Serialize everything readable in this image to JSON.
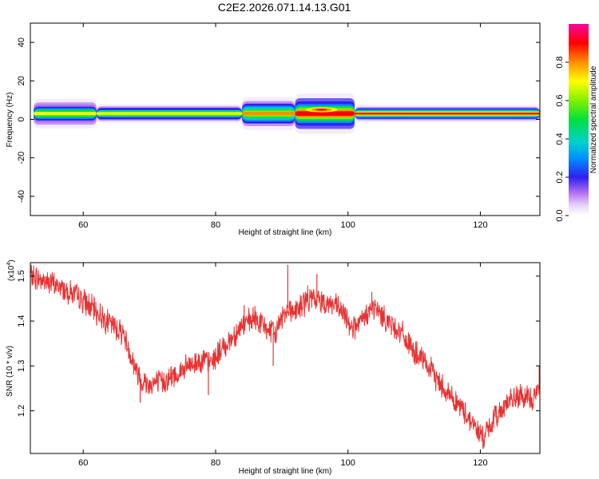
{
  "title": "C2E2.2026.071.14.13.G01",
  "colors": {
    "snr_line": "#e83232",
    "frame": "#000000",
    "background": "#ffffff"
  },
  "chart_data": [
    {
      "type": "heatmap",
      "name": "spectrogram",
      "xlabel": "Height of straight line (km)",
      "ylabel": "Frequency (Hz)",
      "xlim": [
        52,
        129
      ],
      "ylim": [
        -50,
        50
      ],
      "xticks": [
        60,
        80,
        100,
        120
      ],
      "yticks": [
        40,
        20,
        0,
        -20,
        -40
      ],
      "xtick_labels": [
        "60",
        "80",
        "100",
        "120"
      ],
      "ytick_labels": [
        "40",
        "20",
        "0",
        "-20",
        "-40"
      ],
      "band_center_hz": 3,
      "band_segments": [
        {
          "x0": 52.5,
          "x1": 62,
          "halfwidth_hz": 4.0,
          "level": 0.7
        },
        {
          "x0": 62,
          "x1": 84,
          "halfwidth_hz": 2.6,
          "level": 0.75
        },
        {
          "x0": 84,
          "x1": 92,
          "halfwidth_hz": 4.5,
          "level": 0.8
        },
        {
          "x0": 92,
          "x1": 101,
          "halfwidth_hz": 5.5,
          "level": 0.95
        },
        {
          "x0": 101,
          "x1": 129,
          "halfwidth_hz": 2.4,
          "level": 0.9
        }
      ],
      "peak_hz": 5,
      "peak_x": 96
    },
    {
      "type": "colorbar",
      "name": "normalized-amplitude",
      "label": "Normalized spectral amplitude",
      "range": [
        0,
        1
      ],
      "ticks": [
        0.0,
        0.2,
        0.4,
        0.6,
        0.8
      ],
      "tick_labels": [
        "0.0",
        "0.2",
        "0.4",
        "0.6",
        "0.8"
      ]
    },
    {
      "type": "line",
      "name": "snr",
      "xlabel": "Height of straight line (km)",
      "ylabel": "SNR (10 * v/v)",
      "yscale_label": "(x10",
      "yscale_exp": "4",
      "yscale_close": ")",
      "xlim": [
        52,
        129
      ],
      "ylim": [
        1.105,
        1.53
      ],
      "xticks": [
        60,
        80,
        100,
        120
      ],
      "yticks": [
        1.2,
        1.3,
        1.4,
        1.5
      ],
      "xtick_labels": [
        "60",
        "80",
        "100",
        "120"
      ],
      "ytick_labels": [
        "1.2",
        "1.3",
        "1.4",
        "1.5"
      ],
      "series": [
        {
          "name": "SNR",
          "color": "#e83232",
          "x": [
            52,
            55,
            58,
            60,
            62,
            64,
            66,
            67,
            68,
            69,
            70,
            72,
            74,
            76,
            78,
            79,
            80,
            82,
            84,
            86,
            88,
            89,
            90,
            91,
            92,
            94,
            96,
            98,
            99,
            100,
            101,
            102,
            103,
            104,
            106,
            108,
            110,
            112,
            114,
            116,
            118,
            119,
            120,
            121,
            122,
            124,
            126,
            128,
            129
          ],
          "y": [
            1.5,
            1.485,
            1.465,
            1.445,
            1.42,
            1.395,
            1.375,
            1.33,
            1.29,
            1.265,
            1.26,
            1.265,
            1.28,
            1.3,
            1.315,
            1.305,
            1.32,
            1.355,
            1.39,
            1.405,
            1.38,
            1.37,
            1.41,
            1.43,
            1.42,
            1.45,
            1.445,
            1.435,
            1.42,
            1.4,
            1.385,
            1.395,
            1.42,
            1.43,
            1.4,
            1.375,
            1.33,
            1.3,
            1.26,
            1.225,
            1.19,
            1.17,
            1.145,
            1.15,
            1.18,
            1.22,
            1.23,
            1.225,
            1.255
          ],
          "spikes": [
            {
              "x": 68.6,
              "y": 1.218
            },
            {
              "x": 78.9,
              "y": 1.235
            },
            {
              "x": 84.3,
              "y": 1.435
            },
            {
              "x": 88.7,
              "y": 1.3
            },
            {
              "x": 90.9,
              "y": 1.525
            },
            {
              "x": 95.3,
              "y": 1.505
            },
            {
              "x": 103.6,
              "y": 1.465
            },
            {
              "x": 120.4,
              "y": 1.115
            },
            {
              "x": 128.9,
              "y": 1.3
            }
          ]
        }
      ]
    }
  ]
}
